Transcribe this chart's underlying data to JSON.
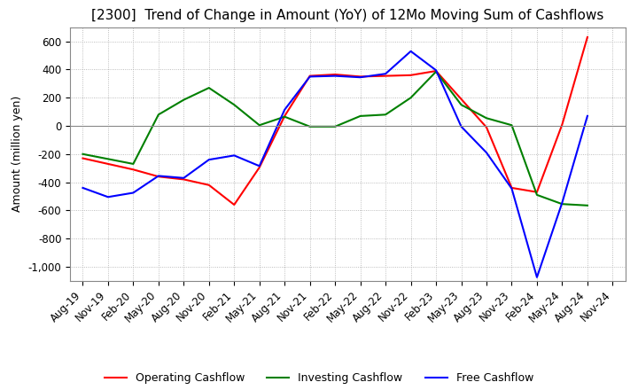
{
  "title": "[2300]  Trend of Change in Amount (YoY) of 12Mo Moving Sum of Cashflows",
  "ylabel": "Amount (million yen)",
  "title_fontsize": 11,
  "label_fontsize": 9,
  "tick_fontsize": 8.5,
  "x_labels": [
    "Aug-19",
    "Nov-19",
    "Feb-20",
    "May-20",
    "Aug-20",
    "Nov-20",
    "Feb-21",
    "May-21",
    "Aug-21",
    "Nov-21",
    "Feb-22",
    "May-22",
    "Aug-22",
    "Nov-22",
    "Feb-23",
    "May-23",
    "Aug-23",
    "Nov-23",
    "Feb-24",
    "May-24",
    "Aug-24",
    "Nov-24"
  ],
  "operating": [
    -230,
    -270,
    -310,
    -360,
    -380,
    -420,
    -560,
    -295,
    70,
    355,
    365,
    350,
    355,
    360,
    390,
    190,
    -10,
    -440,
    -470,
    10,
    630,
    null
  ],
  "investing": [
    -200,
    -235,
    -270,
    80,
    185,
    270,
    150,
    5,
    65,
    -5,
    -5,
    70,
    80,
    200,
    385,
    150,
    55,
    5,
    -490,
    -555,
    -565,
    null
  ],
  "free": [
    -440,
    -505,
    -475,
    -355,
    -370,
    -240,
    -210,
    -285,
    115,
    350,
    355,
    345,
    370,
    530,
    395,
    -5,
    -190,
    -445,
    -1075,
    -545,
    70,
    null
  ],
  "op_color": "#ff0000",
  "inv_color": "#008000",
  "free_color": "#0000ff",
  "background_color": "#ffffff",
  "grid_color": "#aaaaaa",
  "ylim": [
    -1100,
    700
  ],
  "yticks": [
    -1000,
    -800,
    -600,
    -400,
    -200,
    0,
    200,
    400,
    600
  ]
}
